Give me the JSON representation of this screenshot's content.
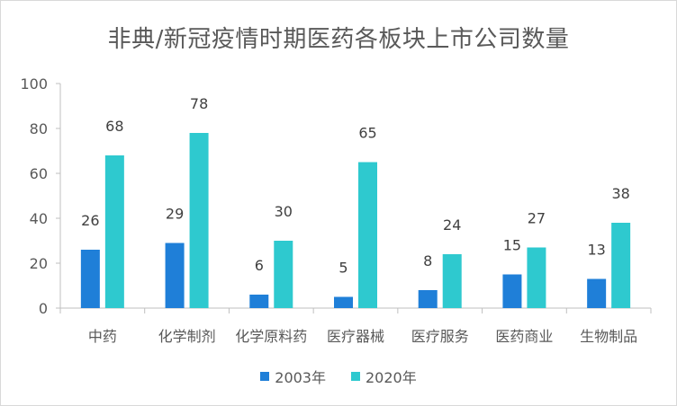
{
  "chart_data": {
    "type": "bar",
    "title": "非典/新冠疫情时期医药各板块上市公司数量",
    "categories": [
      "中药",
      "化学制剂",
      "化学原料药",
      "医疗器械",
      "医疗服务",
      "医药商业",
      "生物制品"
    ],
    "series": [
      {
        "name": "2003年",
        "values": [
          26,
          29,
          6,
          5,
          8,
          15,
          13
        ],
        "color": "#1f7fd8"
      },
      {
        "name": "2020年",
        "values": [
          68,
          78,
          30,
          65,
          24,
          27,
          38
        ],
        "color": "#2ec9cf"
      }
    ],
    "ylim": [
      0,
      100
    ],
    "yticks": [
      0,
      20,
      40,
      60,
      80,
      100
    ],
    "xlabel": "",
    "ylabel": "",
    "grid": false,
    "legend_position": "bottom"
  }
}
